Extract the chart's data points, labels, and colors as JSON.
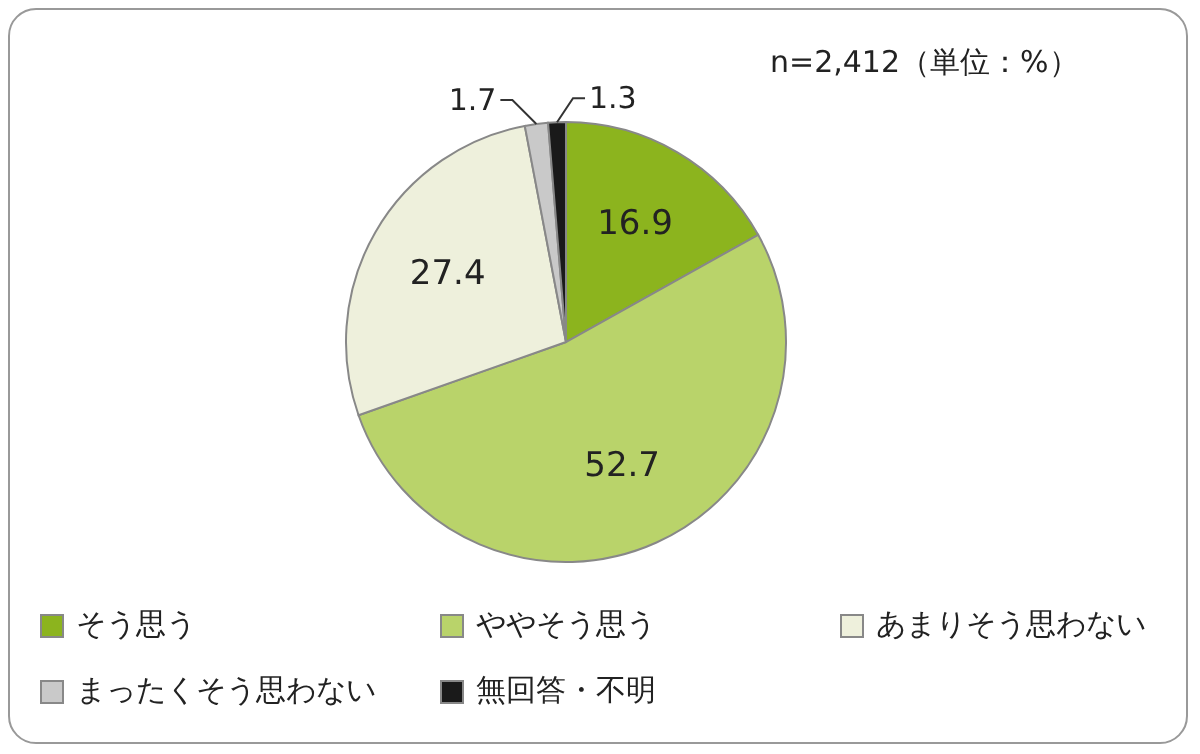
{
  "chart_data": {
    "type": "pie",
    "categories": [
      "そう思う",
      "ややそう思う",
      "あまりそう思わない",
      "まったくそう思わない",
      "無回答・不明"
    ],
    "values": [
      16.9,
      52.7,
      27.4,
      1.7,
      1.3
    ],
    "colors": [
      "#8cb41e",
      "#b9d36a",
      "#eef0dc",
      "#c9c9c9",
      "#1a1a1a"
    ],
    "data_labels": true,
    "legend": "bottom",
    "annotations": [
      "n=2,412（単位：%）"
    ]
  }
}
